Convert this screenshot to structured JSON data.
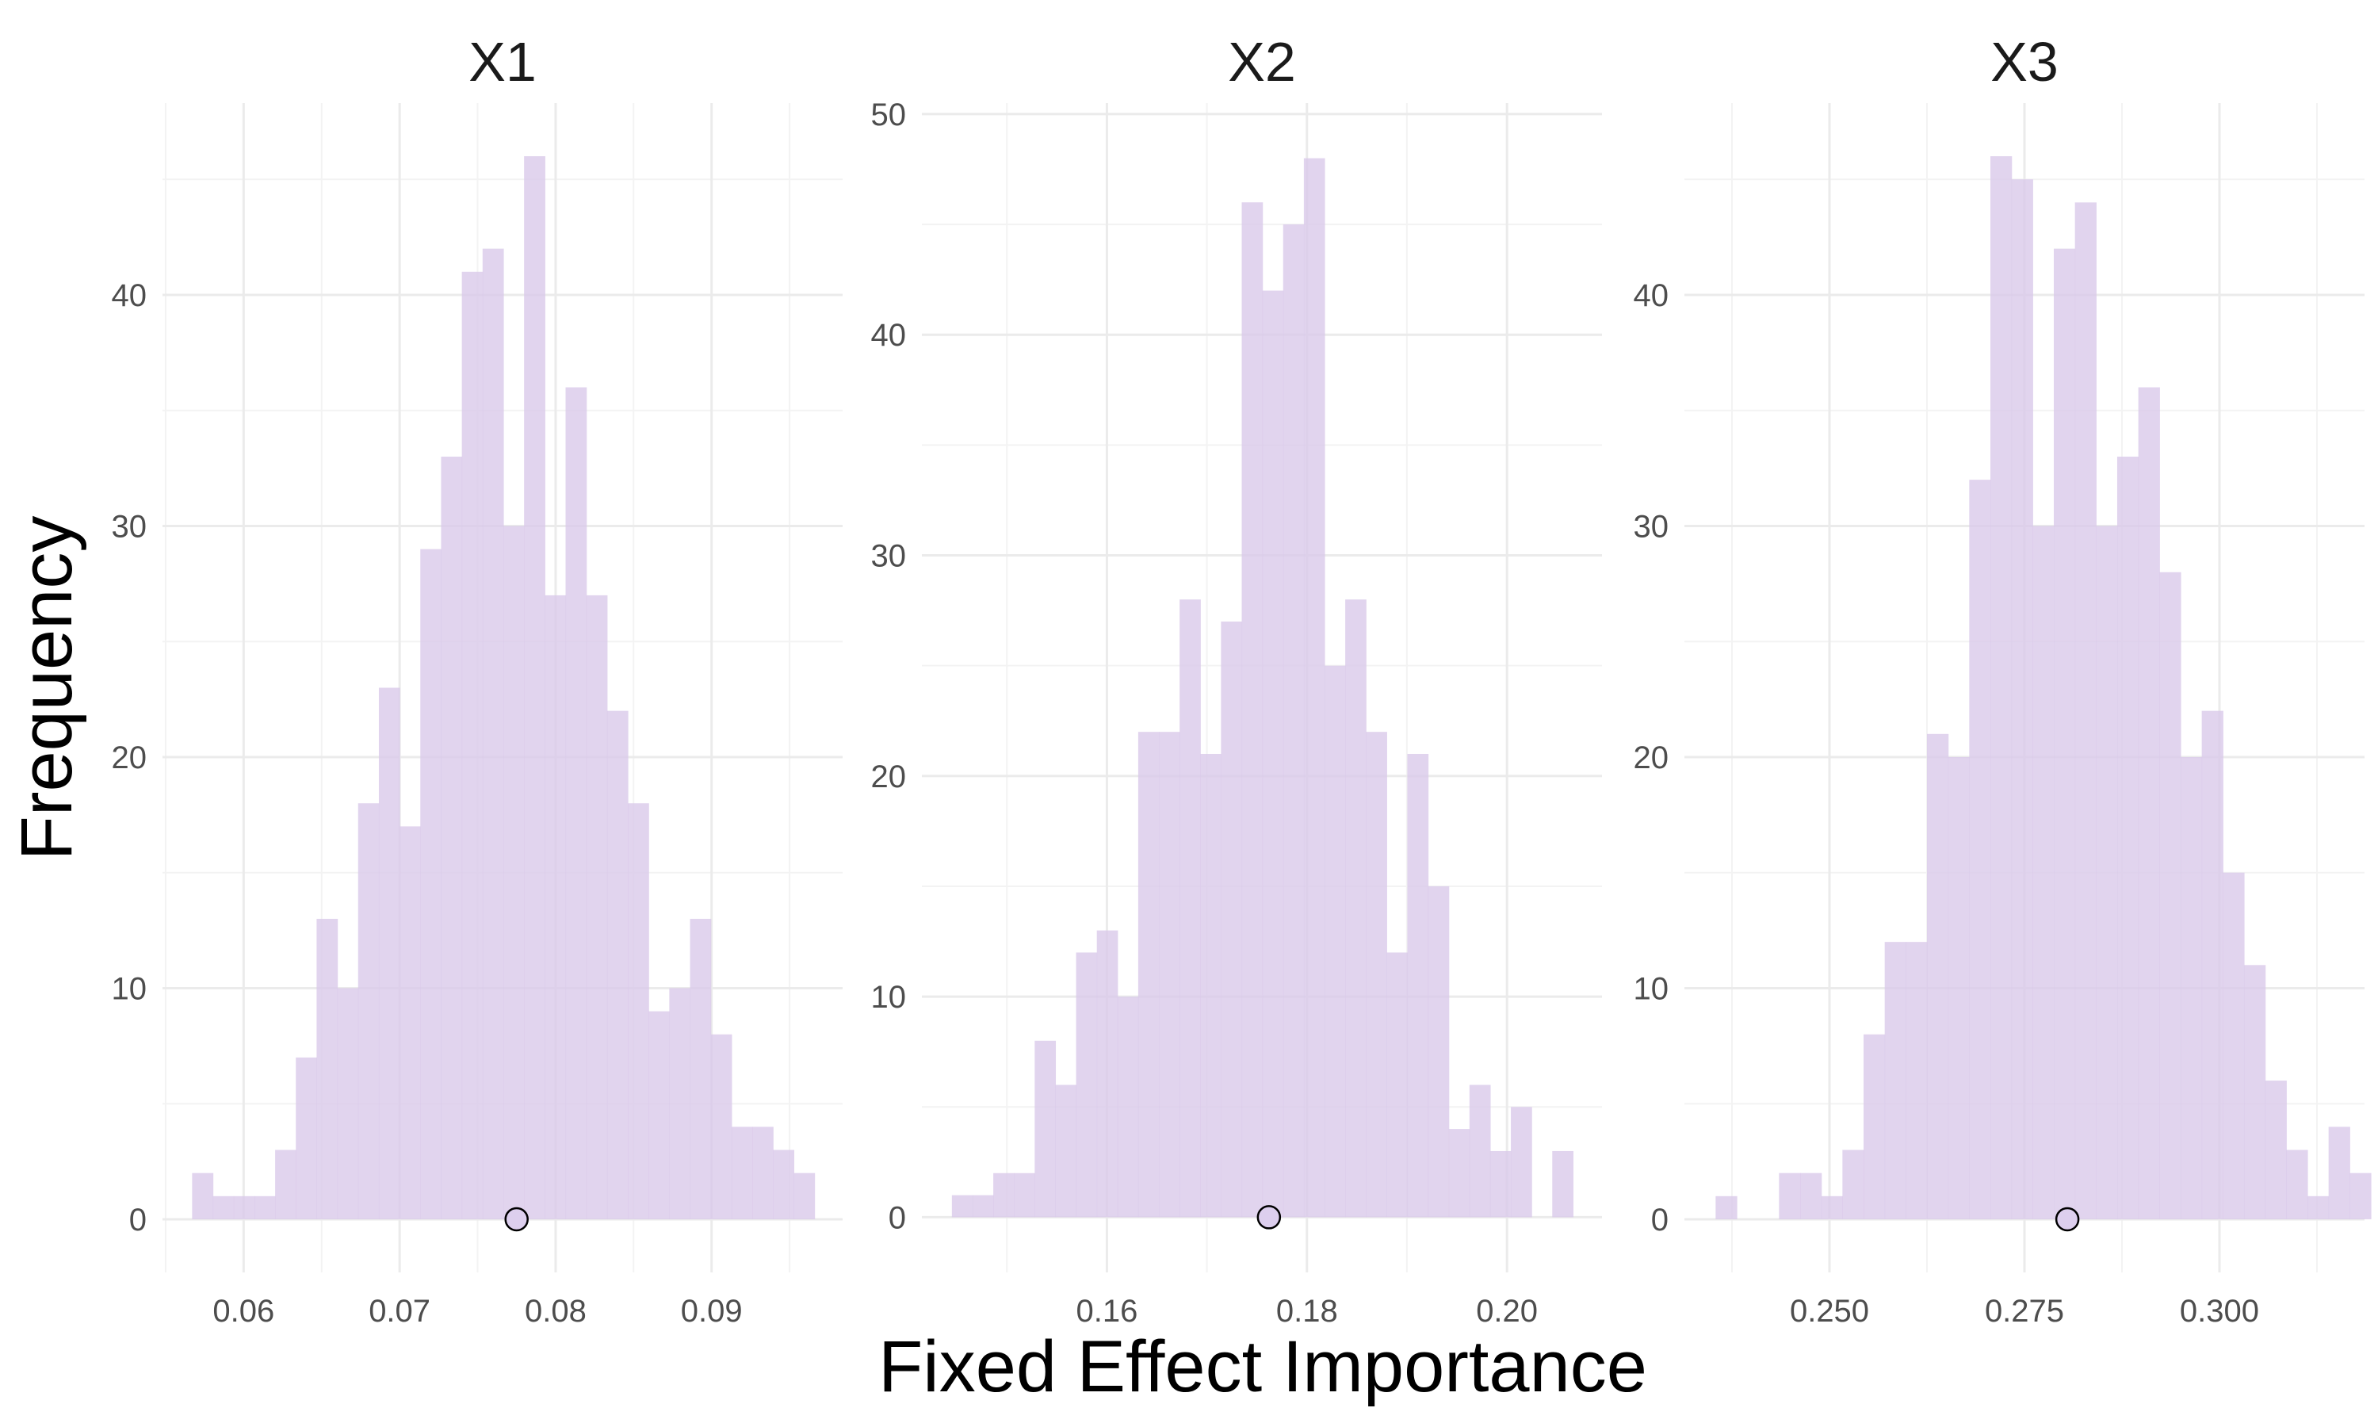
{
  "chart_data": {
    "type": "bar",
    "subtype": "faceted-histogram",
    "xlabel": "Fixed Effect Importance",
    "ylabel": "Frequency",
    "bar_color": "#d9c9ea",
    "point_fill": "#ddcfee",
    "point_stroke": "#000000",
    "grid": true,
    "legend": "none",
    "panels": [
      {
        "title": "X1",
        "xlim": [
          0.0548,
          0.0984
        ],
        "ylim": [
          -2.3,
          48.3
        ],
        "xticks": [
          0.06,
          0.07,
          0.08,
          0.09
        ],
        "xtick_labels": [
          "0.06",
          "0.07",
          "0.08",
          "0.09"
        ],
        "yticks": [
          0,
          10,
          20,
          30,
          40
        ],
        "ytick_labels": [
          "0",
          "10",
          "20",
          "30",
          "40"
        ],
        "bin_start": 0.0567,
        "bin_width": 0.00133,
        "counts": [
          2,
          1,
          1,
          1,
          3,
          7,
          13,
          10,
          18,
          23,
          17,
          29,
          33,
          41,
          42,
          30,
          46,
          27,
          36,
          27,
          22,
          18,
          9,
          10,
          13,
          8,
          4,
          4,
          3,
          2
        ],
        "point": 0.0775
      },
      {
        "title": "X2",
        "xlim": [
          0.1415,
          0.2095
        ],
        "ylim": [
          -2.5,
          50.5
        ],
        "xticks": [
          0.16,
          0.18,
          0.2
        ],
        "xtick_labels": [
          "0.16",
          "0.18",
          "0.20"
        ],
        "yticks": [
          0,
          10,
          20,
          30,
          40,
          50
        ],
        "ytick_labels": [
          "0",
          "10",
          "20",
          "30",
          "40",
          "50"
        ],
        "bin_start": 0.1445,
        "bin_width": 0.00207,
        "counts": [
          1,
          1,
          2,
          2,
          8,
          6,
          12,
          13,
          10,
          22,
          22,
          28,
          21,
          27,
          46,
          42,
          45,
          48,
          25,
          28,
          22,
          12,
          21,
          15,
          4,
          6,
          3,
          5,
          0,
          3
        ],
        "point": 0.1762
      },
      {
        "title": "X3",
        "xlim": [
          0.2314,
          0.3186
        ],
        "ylim": [
          -2.3,
          48.3
        ],
        "xticks": [
          0.25,
          0.275,
          0.3
        ],
        "xtick_labels": [
          "0.250",
          "0.275",
          "0.300"
        ],
        "yticks": [
          0,
          10,
          20,
          30,
          40
        ],
        "ytick_labels": [
          "0",
          "10",
          "20",
          "30",
          "40"
        ],
        "bin_start": 0.2354,
        "bin_width": 0.00271,
        "counts": [
          1,
          0,
          0,
          2,
          2,
          1,
          3,
          8,
          12,
          12,
          21,
          20,
          32,
          46,
          45,
          30,
          42,
          44,
          30,
          33,
          36,
          28,
          20,
          22,
          15,
          11,
          6,
          3,
          1,
          4,
          2
        ],
        "point": 0.2805
      }
    ]
  }
}
